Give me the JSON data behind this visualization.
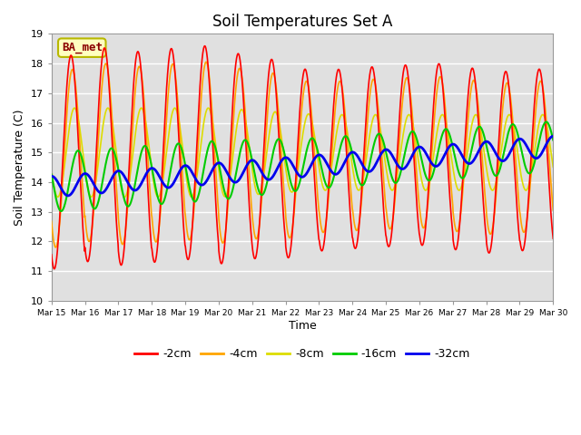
{
  "title": "Soil Temperatures Set A",
  "xlabel": "Time",
  "ylabel": "Soil Temperature (C)",
  "ylim": [
    10.0,
    19.0
  ],
  "yticks": [
    10.0,
    11.0,
    12.0,
    13.0,
    14.0,
    15.0,
    16.0,
    17.0,
    18.0,
    19.0
  ],
  "date_labels": [
    "Mar 15",
    "Mar 16",
    "Mar 17",
    "Mar 18",
    "Mar 19",
    "Mar 20",
    "Mar 21",
    "Mar 22",
    "Mar 23",
    "Mar 24",
    "Mar 25",
    "Mar 26",
    "Mar 27",
    "Mar 28",
    "Mar 29",
    "Mar 30"
  ],
  "legend_label": "BA_met",
  "legend_text_color": "#8B0000",
  "legend_bg_color": "#FFFFC0",
  "legend_border_color": "#B8B800",
  "colors": {
    "-2cm": "#FF0000",
    "-4cm": "#FFA500",
    "-8cm": "#DDDD00",
    "-16cm": "#00CC00",
    "-32cm": "#0000EE"
  },
  "line_widths": {
    "-2cm": 1.2,
    "-4cm": 1.2,
    "-8cm": 1.2,
    "-16cm": 1.5,
    "-32cm": 2.0
  },
  "plot_bg_color": "#E0E0E0",
  "fig_bg_color": "#FFFFFF",
  "num_days": 15,
  "start_day": 15
}
